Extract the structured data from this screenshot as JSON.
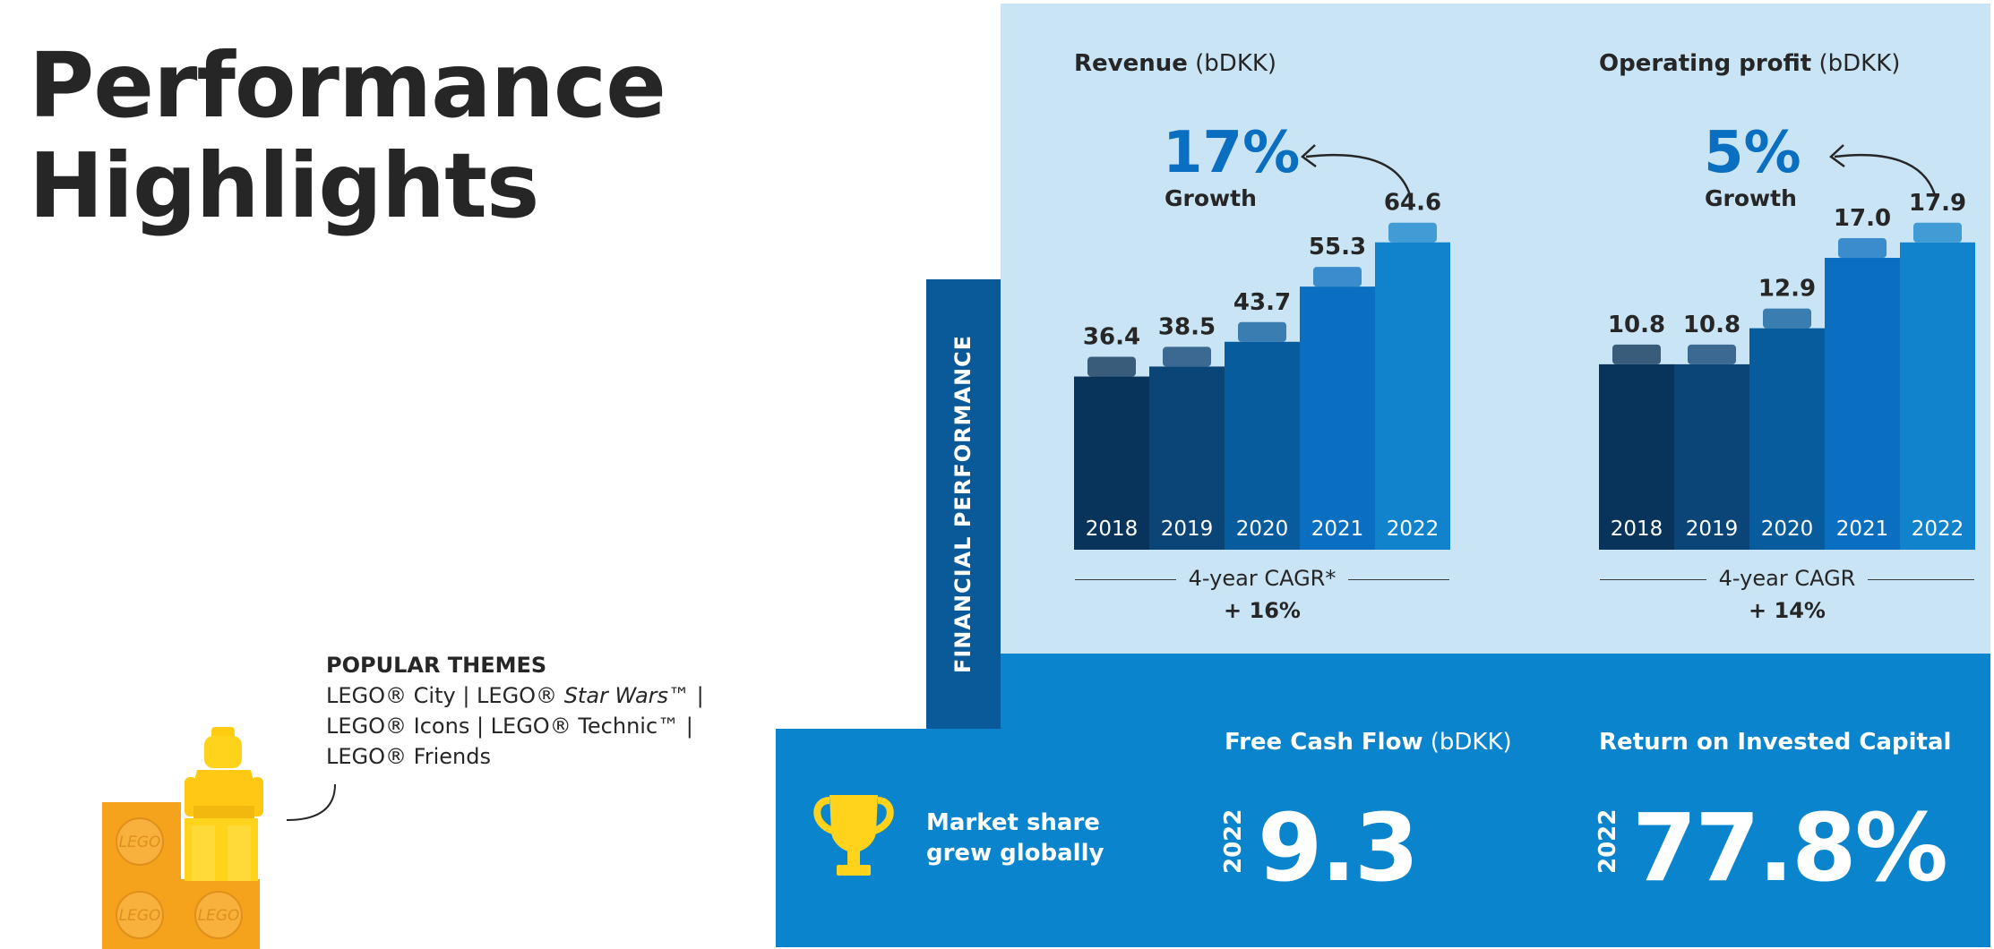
{
  "page": {
    "title_line1": "Performance",
    "title_line2": "Highlights",
    "side_tab": "FINANCIAL PERFORMANCE"
  },
  "colors": {
    "panel_light": "#c9e4f4",
    "band_blue": "#0a84cc",
    "tab_blue": "#0a5a9a",
    "growth_blue": "#0a6fc0",
    "bar_2018": "#08335a",
    "bar_2019": "#0b4477",
    "bar_2020": "#075c9e",
    "bar_2021": "#0a6fc0",
    "bar_2022": "#1183cc",
    "lego_orange": "#f5a31c",
    "lego_yellow": "#ffd21c"
  },
  "chart_data": [
    {
      "type": "bar",
      "title": "Revenue",
      "unit": "(bDKK)",
      "categories": [
        "2018",
        "2019",
        "2020",
        "2021",
        "2022"
      ],
      "values": [
        36.4,
        38.5,
        43.7,
        55.3,
        64.6
      ],
      "value_labels": [
        "36.4",
        "38.5",
        "43.7",
        "55.3",
        "64.6"
      ],
      "ylim": [
        0,
        70
      ],
      "growth": {
        "value": "17%",
        "label": "Growth"
      },
      "cagr": {
        "label": "4-year CAGR*",
        "value": "+ 16%"
      }
    },
    {
      "type": "bar",
      "title": "Operating profit",
      "unit": "(bDKK)",
      "categories": [
        "2018",
        "2019",
        "2020",
        "2021",
        "2022"
      ],
      "values": [
        10.8,
        10.8,
        12.9,
        17.0,
        17.9
      ],
      "value_labels": [
        "10.8",
        "10.8",
        "12.9",
        "17.0",
        "17.9"
      ],
      "ylim": [
        0,
        19.4
      ],
      "growth": {
        "value": "5%",
        "label": "Growth"
      },
      "cagr": {
        "label": "4-year CAGR",
        "value": "+ 14%"
      }
    }
  ],
  "themes": {
    "title": "POPULAR THEMES",
    "line1": "LEGO® City | LEGO® ",
    "line1_italic": "Star Wars",
    "line1_end": "™ |",
    "line2": "LEGO® Icons | LEGO® Technic™ |",
    "line3": "LEGO® Friends"
  },
  "lego_brick_text": "LEGO",
  "market": {
    "line1": "Market share",
    "line2": "grew globally",
    "icon": "trophy-icon"
  },
  "free_cash_flow": {
    "title": "Free Cash Flow",
    "unit": "(bDKK)",
    "year": "2022",
    "value": "9.3"
  },
  "roic": {
    "title": "Return on Invested Capital",
    "year": "2022",
    "value": "77.8%"
  }
}
